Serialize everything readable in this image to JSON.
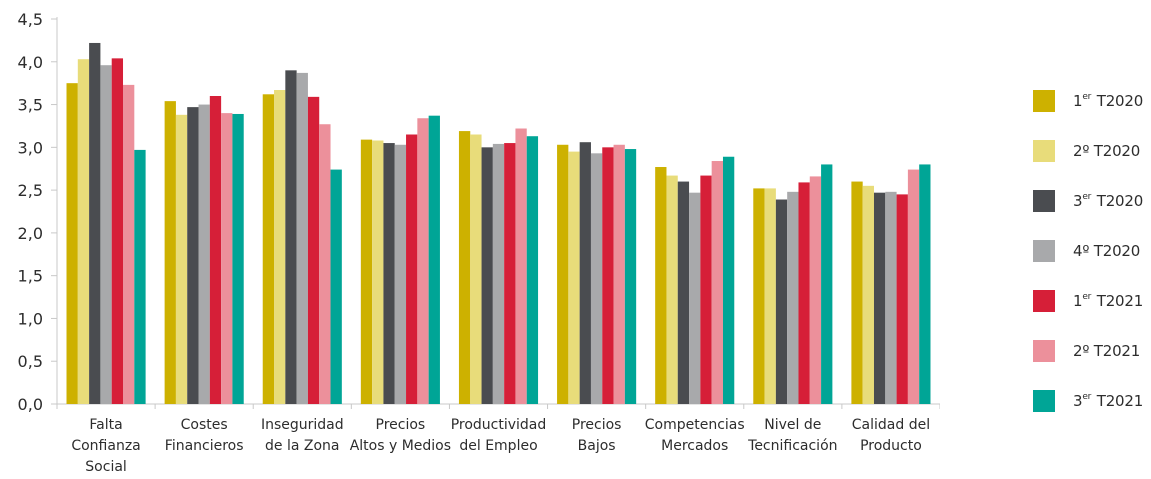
{
  "chart_data": {
    "type": "bar",
    "categories": [
      [
        "Falta",
        "Confianza",
        "Social"
      ],
      [
        "Costes",
        "Financieros"
      ],
      [
        "Inseguridad",
        "de la Zona"
      ],
      [
        "Precios",
        "Altos y Medios"
      ],
      [
        "Productividad",
        "del Empleo"
      ],
      [
        "Precios",
        "Bajos"
      ],
      [
        "Competencias",
        "Mercados"
      ],
      [
        "Nivel de",
        "Tecnificación"
      ],
      [
        "Calidad del",
        "Producto"
      ]
    ],
    "y_ticks": [
      "0,0",
      "0,5",
      "1,0",
      "1,5",
      "2,0",
      "2,5",
      "3,0",
      "3,5",
      "4,0",
      "4,5"
    ],
    "ylim": [
      0,
      4.5
    ],
    "grid": false,
    "legend_position": "right",
    "series": [
      {
        "name": "1er T2020",
        "prefix": "1",
        "sup": "er",
        "suffix": " T2020",
        "color": "#cdb100",
        "values": [
          3.75,
          3.54,
          3.62,
          3.09,
          3.19,
          3.03,
          2.77,
          2.52,
          2.6
        ]
      },
      {
        "name": "2º T2020",
        "prefix": "2º",
        "sup": "",
        "suffix": " T2020",
        "color": "#e8dc7a",
        "values": [
          4.03,
          3.38,
          3.67,
          3.08,
          3.15,
          2.95,
          2.67,
          2.52,
          2.55
        ]
      },
      {
        "name": "3er T2020",
        "prefix": "3",
        "sup": "er",
        "suffix": " T2020",
        "color": "#4a4c50",
        "values": [
          4.22,
          3.47,
          3.9,
          3.05,
          3.0,
          3.06,
          2.6,
          2.39,
          2.47
        ]
      },
      {
        "name": "4º T2020",
        "prefix": "4º",
        "sup": "",
        "suffix": " T2020",
        "color": "#a8a9ab",
        "values": [
          3.96,
          3.5,
          3.87,
          3.03,
          3.04,
          2.93,
          2.47,
          2.48,
          2.48
        ]
      },
      {
        "name": "1er T2021",
        "prefix": "1",
        "sup": "er",
        "suffix": " T2021",
        "color": "#d61f38",
        "values": [
          4.04,
          3.6,
          3.59,
          3.15,
          3.05,
          3.0,
          2.67,
          2.59,
          2.45
        ]
      },
      {
        "name": "2º T2021",
        "prefix": "2º",
        "sup": "",
        "suffix": " T2021",
        "color": "#ec909b",
        "values": [
          3.73,
          3.4,
          3.27,
          3.34,
          3.22,
          3.03,
          2.84,
          2.66,
          2.74
        ]
      },
      {
        "name": "3er T2021",
        "prefix": "3",
        "sup": "er",
        "suffix": " T2021",
        "color": "#00a596",
        "values": [
          2.97,
          3.39,
          2.74,
          3.37,
          3.13,
          2.98,
          2.89,
          2.8,
          2.8
        ]
      }
    ],
    "colors": {
      "axis": "#c8c8c8",
      "text": "#2d2d2d"
    }
  }
}
